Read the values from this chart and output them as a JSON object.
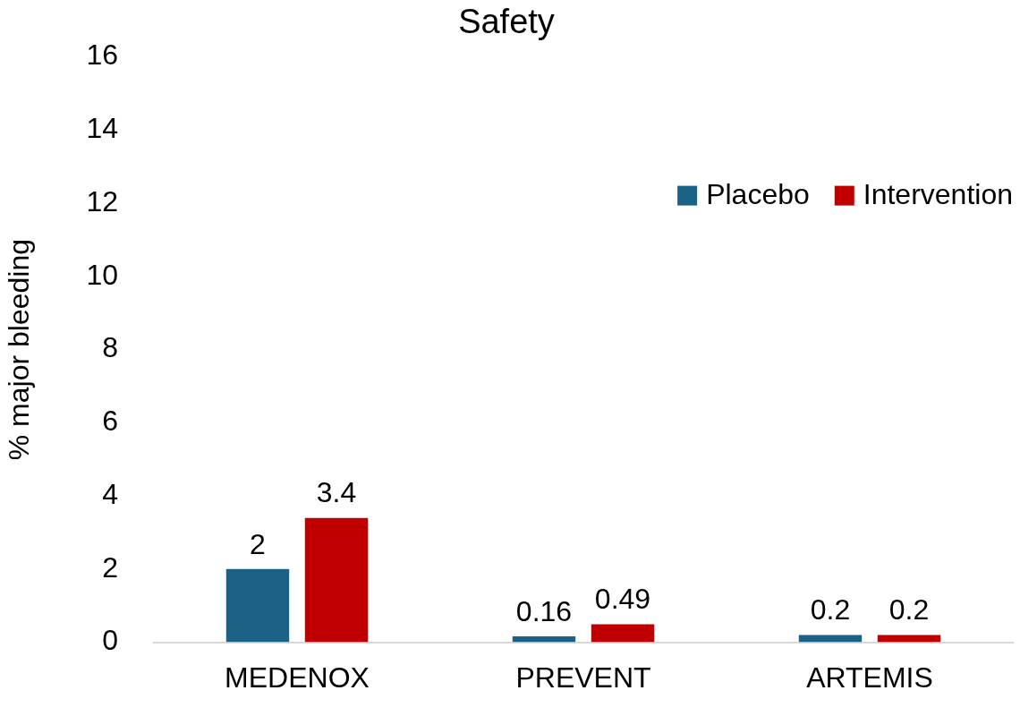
{
  "chart_data": {
    "type": "bar",
    "title": "Safety",
    "ylabel": "% major bleeding",
    "categories": [
      "MEDENOX",
      "PREVENT",
      "ARTEMIS"
    ],
    "series": [
      {
        "name": "Placebo",
        "color": "#1a6185",
        "values": [
          2,
          0.16,
          0.2
        ]
      },
      {
        "name": "Intervention",
        "color": "#c00000",
        "values": [
          3.4,
          0.49,
          0.2
        ]
      }
    ],
    "ylim": [
      0,
      16
    ],
    "yticks": [
      0,
      2,
      4,
      6,
      8,
      10,
      12,
      14,
      16
    ],
    "grid": false,
    "legend": "top right",
    "data_labels": true
  }
}
